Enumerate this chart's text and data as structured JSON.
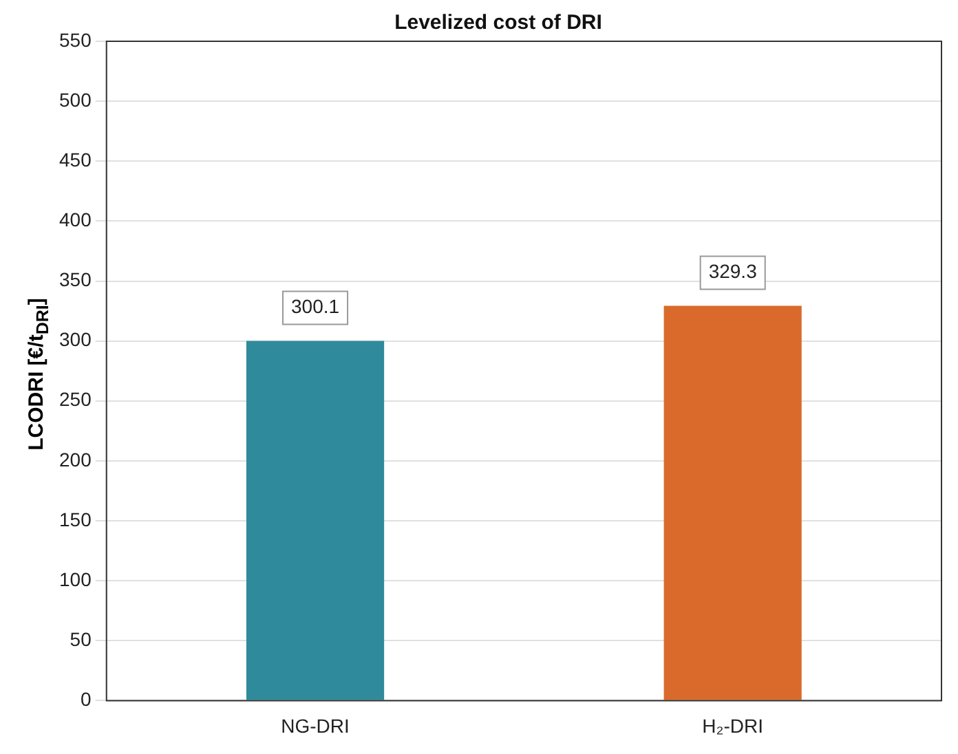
{
  "chart_data": {
    "type": "bar",
    "title": "Levelized cost of DRI",
    "ylabel": "LCODRI [€/t$_{DRI}$]",
    "categories": [
      "NG-DRI",
      "H₂-DRI"
    ],
    "values": [
      300.1,
      329.3
    ],
    "colors": [
      "#2f8b9b",
      "#d96a2b"
    ],
    "ylim": [
      0,
      550
    ],
    "yticks": [
      0,
      50,
      100,
      150,
      200,
      250,
      300,
      350,
      400,
      450,
      500,
      550
    ],
    "grid": "y",
    "data_labels": true,
    "legend": false
  }
}
